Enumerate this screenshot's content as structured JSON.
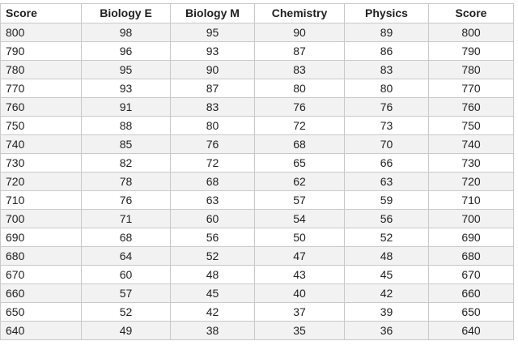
{
  "table": {
    "columns": [
      "Score",
      "Biology E",
      "Biology M",
      "Chemistry",
      "Physics",
      "Score"
    ],
    "rows": [
      [
        "800",
        "98",
        "95",
        "90",
        "89",
        "800"
      ],
      [
        "790",
        "96",
        "93",
        "87",
        "86",
        "790"
      ],
      [
        "780",
        "95",
        "90",
        "83",
        "83",
        "780"
      ],
      [
        "770",
        "93",
        "87",
        "80",
        "80",
        "770"
      ],
      [
        "760",
        "91",
        "83",
        "76",
        "76",
        "760"
      ],
      [
        "750",
        "88",
        "80",
        "72",
        "73",
        "750"
      ],
      [
        "740",
        "85",
        "76",
        "68",
        "70",
        "740"
      ],
      [
        "730",
        "82",
        "72",
        "65",
        "66",
        "730"
      ],
      [
        "720",
        "78",
        "68",
        "62",
        "63",
        "720"
      ],
      [
        "710",
        "76",
        "63",
        "57",
        "59",
        "710"
      ],
      [
        "700",
        "71",
        "60",
        "54",
        "56",
        "700"
      ],
      [
        "690",
        "68",
        "56",
        "50",
        "52",
        "690"
      ],
      [
        "680",
        "64",
        "52",
        "47",
        "48",
        "680"
      ],
      [
        "670",
        "60",
        "48",
        "43",
        "45",
        "670"
      ],
      [
        "660",
        "57",
        "45",
        "40",
        "42",
        "660"
      ],
      [
        "650",
        "52",
        "42",
        "37",
        "39",
        "650"
      ],
      [
        "640",
        "49",
        "38",
        "35",
        "36",
        "640"
      ]
    ]
  }
}
